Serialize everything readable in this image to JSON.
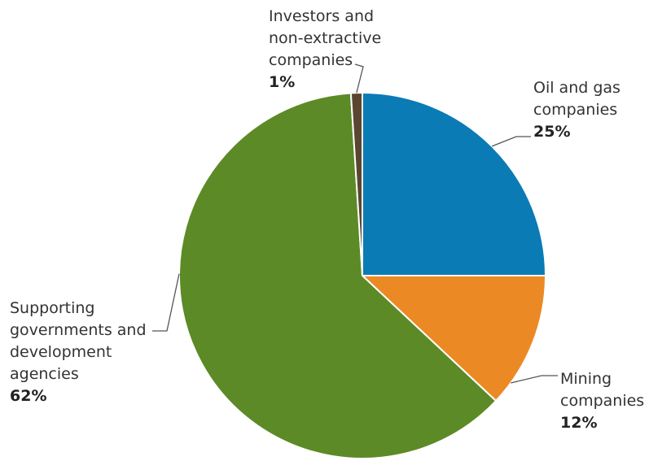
{
  "chart_data": {
    "type": "pie",
    "start": "12 o'clock",
    "direction": "clockwise",
    "slices": [
      {
        "label": "Oil and gas companies",
        "display": "Oil and gas\ncompanies",
        "value": 25,
        "value_label": "25%",
        "color": "#0a7bb5"
      },
      {
        "label": "Mining companies",
        "display": "Mining\ncompanies",
        "value": 12,
        "value_label": "12%",
        "color": "#eb8a24"
      },
      {
        "label": "Supporting governments and development agencies",
        "display": "Supporting\ngovernments and\ndevelopment\nagencies",
        "value": 62,
        "value_label": "62%",
        "color": "#5c8a26"
      },
      {
        "label": "Investors and non-extractive companies",
        "display": "Investors and\nnon-extractive\ncompanies",
        "value": 1,
        "value_label": "1%",
        "color": "#5a4630"
      }
    ]
  }
}
